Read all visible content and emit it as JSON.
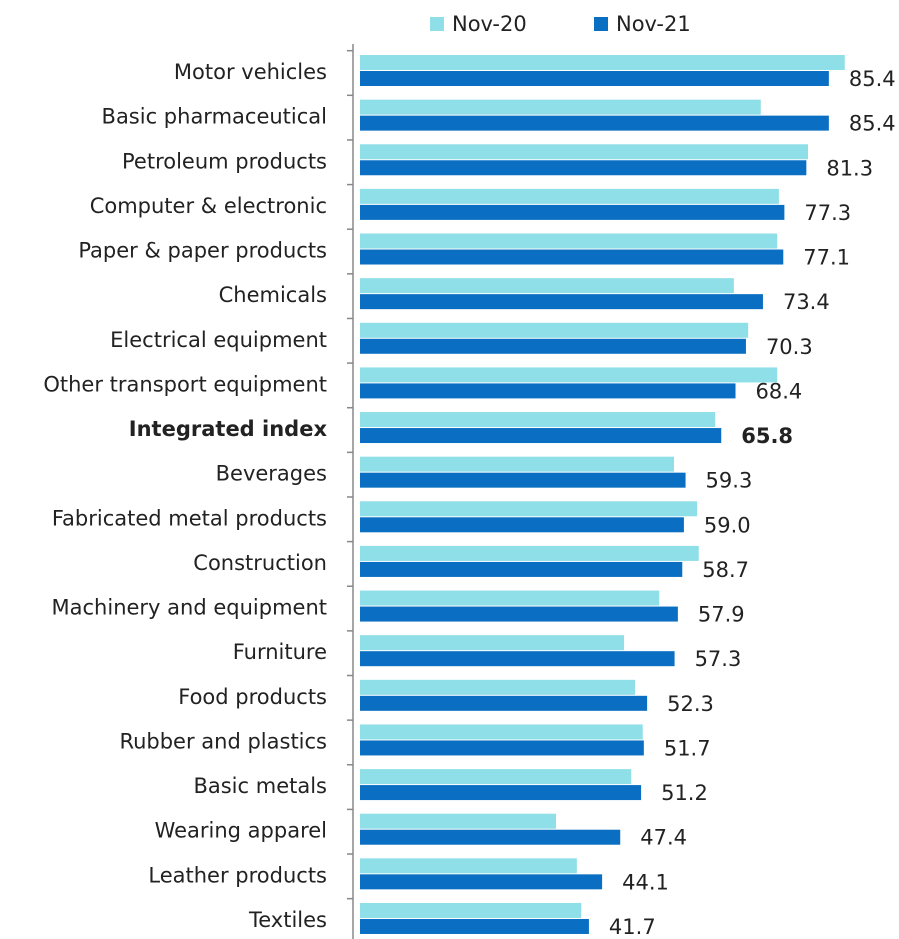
{
  "chart_data": {
    "type": "hbar",
    "categories": [
      "Motor vehicles",
      "Basic pharmaceutical",
      "Petroleum products",
      "Computer & electronic",
      "Paper & paper products",
      "Chemicals",
      "Electrical equipment",
      "Other transport equipment",
      "Integrated index",
      "Beverages",
      "Fabricated metal products",
      "Construction",
      "Machinery and equipment",
      "Furniture",
      "Food products",
      "Rubber and plastics",
      "Basic metals",
      "Wearing apparel",
      "Leather products",
      "Textiles"
    ],
    "series": [
      {
        "name": "Nov-20",
        "color": "#8fdfe8",
        "values": [
          88.3,
          73.0,
          81.6,
          76.3,
          76.0,
          68.1,
          70.7,
          76.0,
          64.7,
          57.2,
          61.4,
          61.7,
          54.5,
          48.1,
          50.1,
          51.5,
          49.4,
          35.7,
          39.5,
          40.3
        ]
      },
      {
        "name": "Nov-21",
        "color": "#0a6fc2",
        "values": [
          85.4,
          85.4,
          81.3,
          77.3,
          77.1,
          73.4,
          70.3,
          68.4,
          65.8,
          59.3,
          59.0,
          58.7,
          57.9,
          57.3,
          52.3,
          51.7,
          51.2,
          47.4,
          44.1,
          41.7
        ],
        "value_labels": [
          "85.4",
          "85.4",
          "81.3",
          "77.3",
          "77.1",
          "73.4",
          "70.3",
          "68.4",
          "65.8",
          "59.3",
          "59.0",
          "58.7",
          "57.9",
          "57.3",
          "52.3",
          "51.7",
          "51.2",
          "47.4",
          "44.1",
          "41.7"
        ]
      }
    ],
    "bold_category": "Integrated index",
    "xlim": [
      0,
      98
    ],
    "legend": "top"
  }
}
